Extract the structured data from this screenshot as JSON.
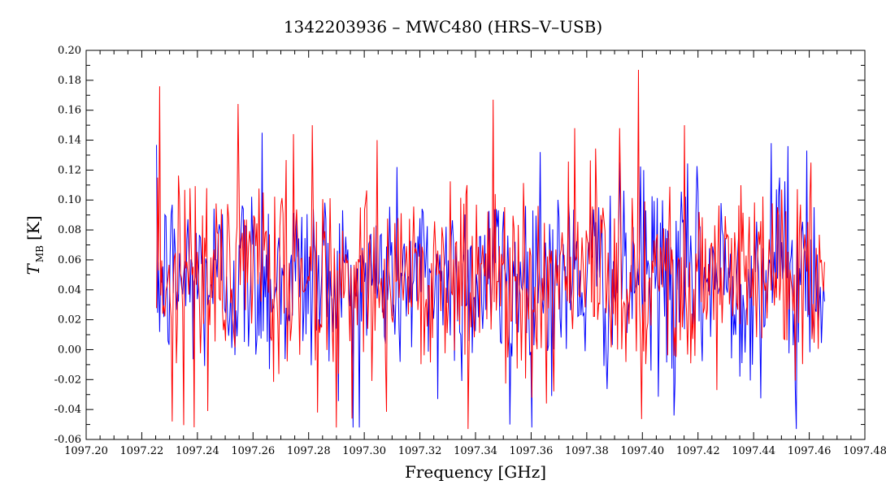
{
  "chart_data": {
    "type": "line",
    "title": "1342203936 – MWC480 (HRS–V–USB)",
    "xlabel": "Frequency [GHz]",
    "ylabel_main": "T",
    "ylabel_sub": "MB",
    "ylabel_unit": "[K]",
    "xlim": [
      1097.2,
      1097.48
    ],
    "ylim": [
      -0.06,
      0.2
    ],
    "xticks": [
      "1097.20",
      "1097.22",
      "1097.24",
      "1097.26",
      "1097.28",
      "1097.30",
      "1097.32",
      "1097.34",
      "1097.36",
      "1097.38",
      "1097.40",
      "1097.42",
      "1097.44",
      "1097.46",
      "1097.48"
    ],
    "xtick_values": [
      1097.2,
      1097.22,
      1097.24,
      1097.26,
      1097.28,
      1097.3,
      1097.32,
      1097.34,
      1097.36,
      1097.38,
      1097.4,
      1097.42,
      1097.44,
      1097.46,
      1097.48
    ],
    "yticks": [
      "-0.06",
      "-0.04",
      "-0.02",
      "0.00",
      "0.02",
      "0.04",
      "0.06",
      "0.08",
      "0.10",
      "0.12",
      "0.14",
      "0.16",
      "0.18",
      "0.20"
    ],
    "ytick_values": [
      -0.06,
      -0.04,
      -0.02,
      0.0,
      0.02,
      0.04,
      0.06,
      0.08,
      0.1,
      0.12,
      0.14,
      0.16,
      0.18,
      0.2
    ],
    "grid": false,
    "series": [
      {
        "color": "#0000ff",
        "x_start": 1097.2253,
        "x_end": 1097.4655,
        "mean": 0.048,
        "noise_std": 0.032,
        "points": 640,
        "peaks": [
          {
            "x": 1097.2633,
            "y": 0.145
          },
          {
            "x": 1097.3265,
            "y": -0.033
          },
          {
            "x": 1097.2958,
            "y": -0.052
          },
          {
            "x": 1097.3522,
            "y": -0.05
          },
          {
            "x": 1097.4115,
            "y": -0.044
          },
          {
            "x": 1097.4555,
            "y": -0.053
          },
          {
            "x": 1097.4462,
            "y": 0.138
          },
          {
            "x": 1097.459,
            "y": 0.133
          },
          {
            "x": 1097.4525,
            "y": 0.136
          },
          {
            "x": 1097.4005,
            "y": 0.12
          },
          {
            "x": 1097.3632,
            "y": 0.132
          },
          {
            "x": 1097.46,
            "y": 0.05
          }
        ]
      },
      {
        "color": "#ff0000",
        "x_start": 1097.2253,
        "x_end": 1097.4655,
        "mean": 0.05,
        "noise_std": 0.033,
        "points": 640,
        "peaks": [
          {
            "x": 1097.2265,
            "y": 0.176
          },
          {
            "x": 1097.2255,
            "y": 0.115
          },
          {
            "x": 1097.2308,
            "y": -0.048
          },
          {
            "x": 1097.2437,
            "y": -0.041
          },
          {
            "x": 1097.2812,
            "y": 0.15
          },
          {
            "x": 1097.2955,
            "y": -0.046
          },
          {
            "x": 1097.3045,
            "y": 0.14
          },
          {
            "x": 1097.3372,
            "y": -0.053
          },
          {
            "x": 1097.3465,
            "y": 0.167
          },
          {
            "x": 1097.3655,
            "y": -0.036
          },
          {
            "x": 1097.3987,
            "y": 0.187
          },
          {
            "x": 1097.3917,
            "y": 0.148
          },
          {
            "x": 1097.4152,
            "y": 0.15
          },
          {
            "x": 1097.3755,
            "y": 0.148
          },
          {
            "x": 1097.2832,
            "y": -0.042
          }
        ]
      }
    ]
  }
}
